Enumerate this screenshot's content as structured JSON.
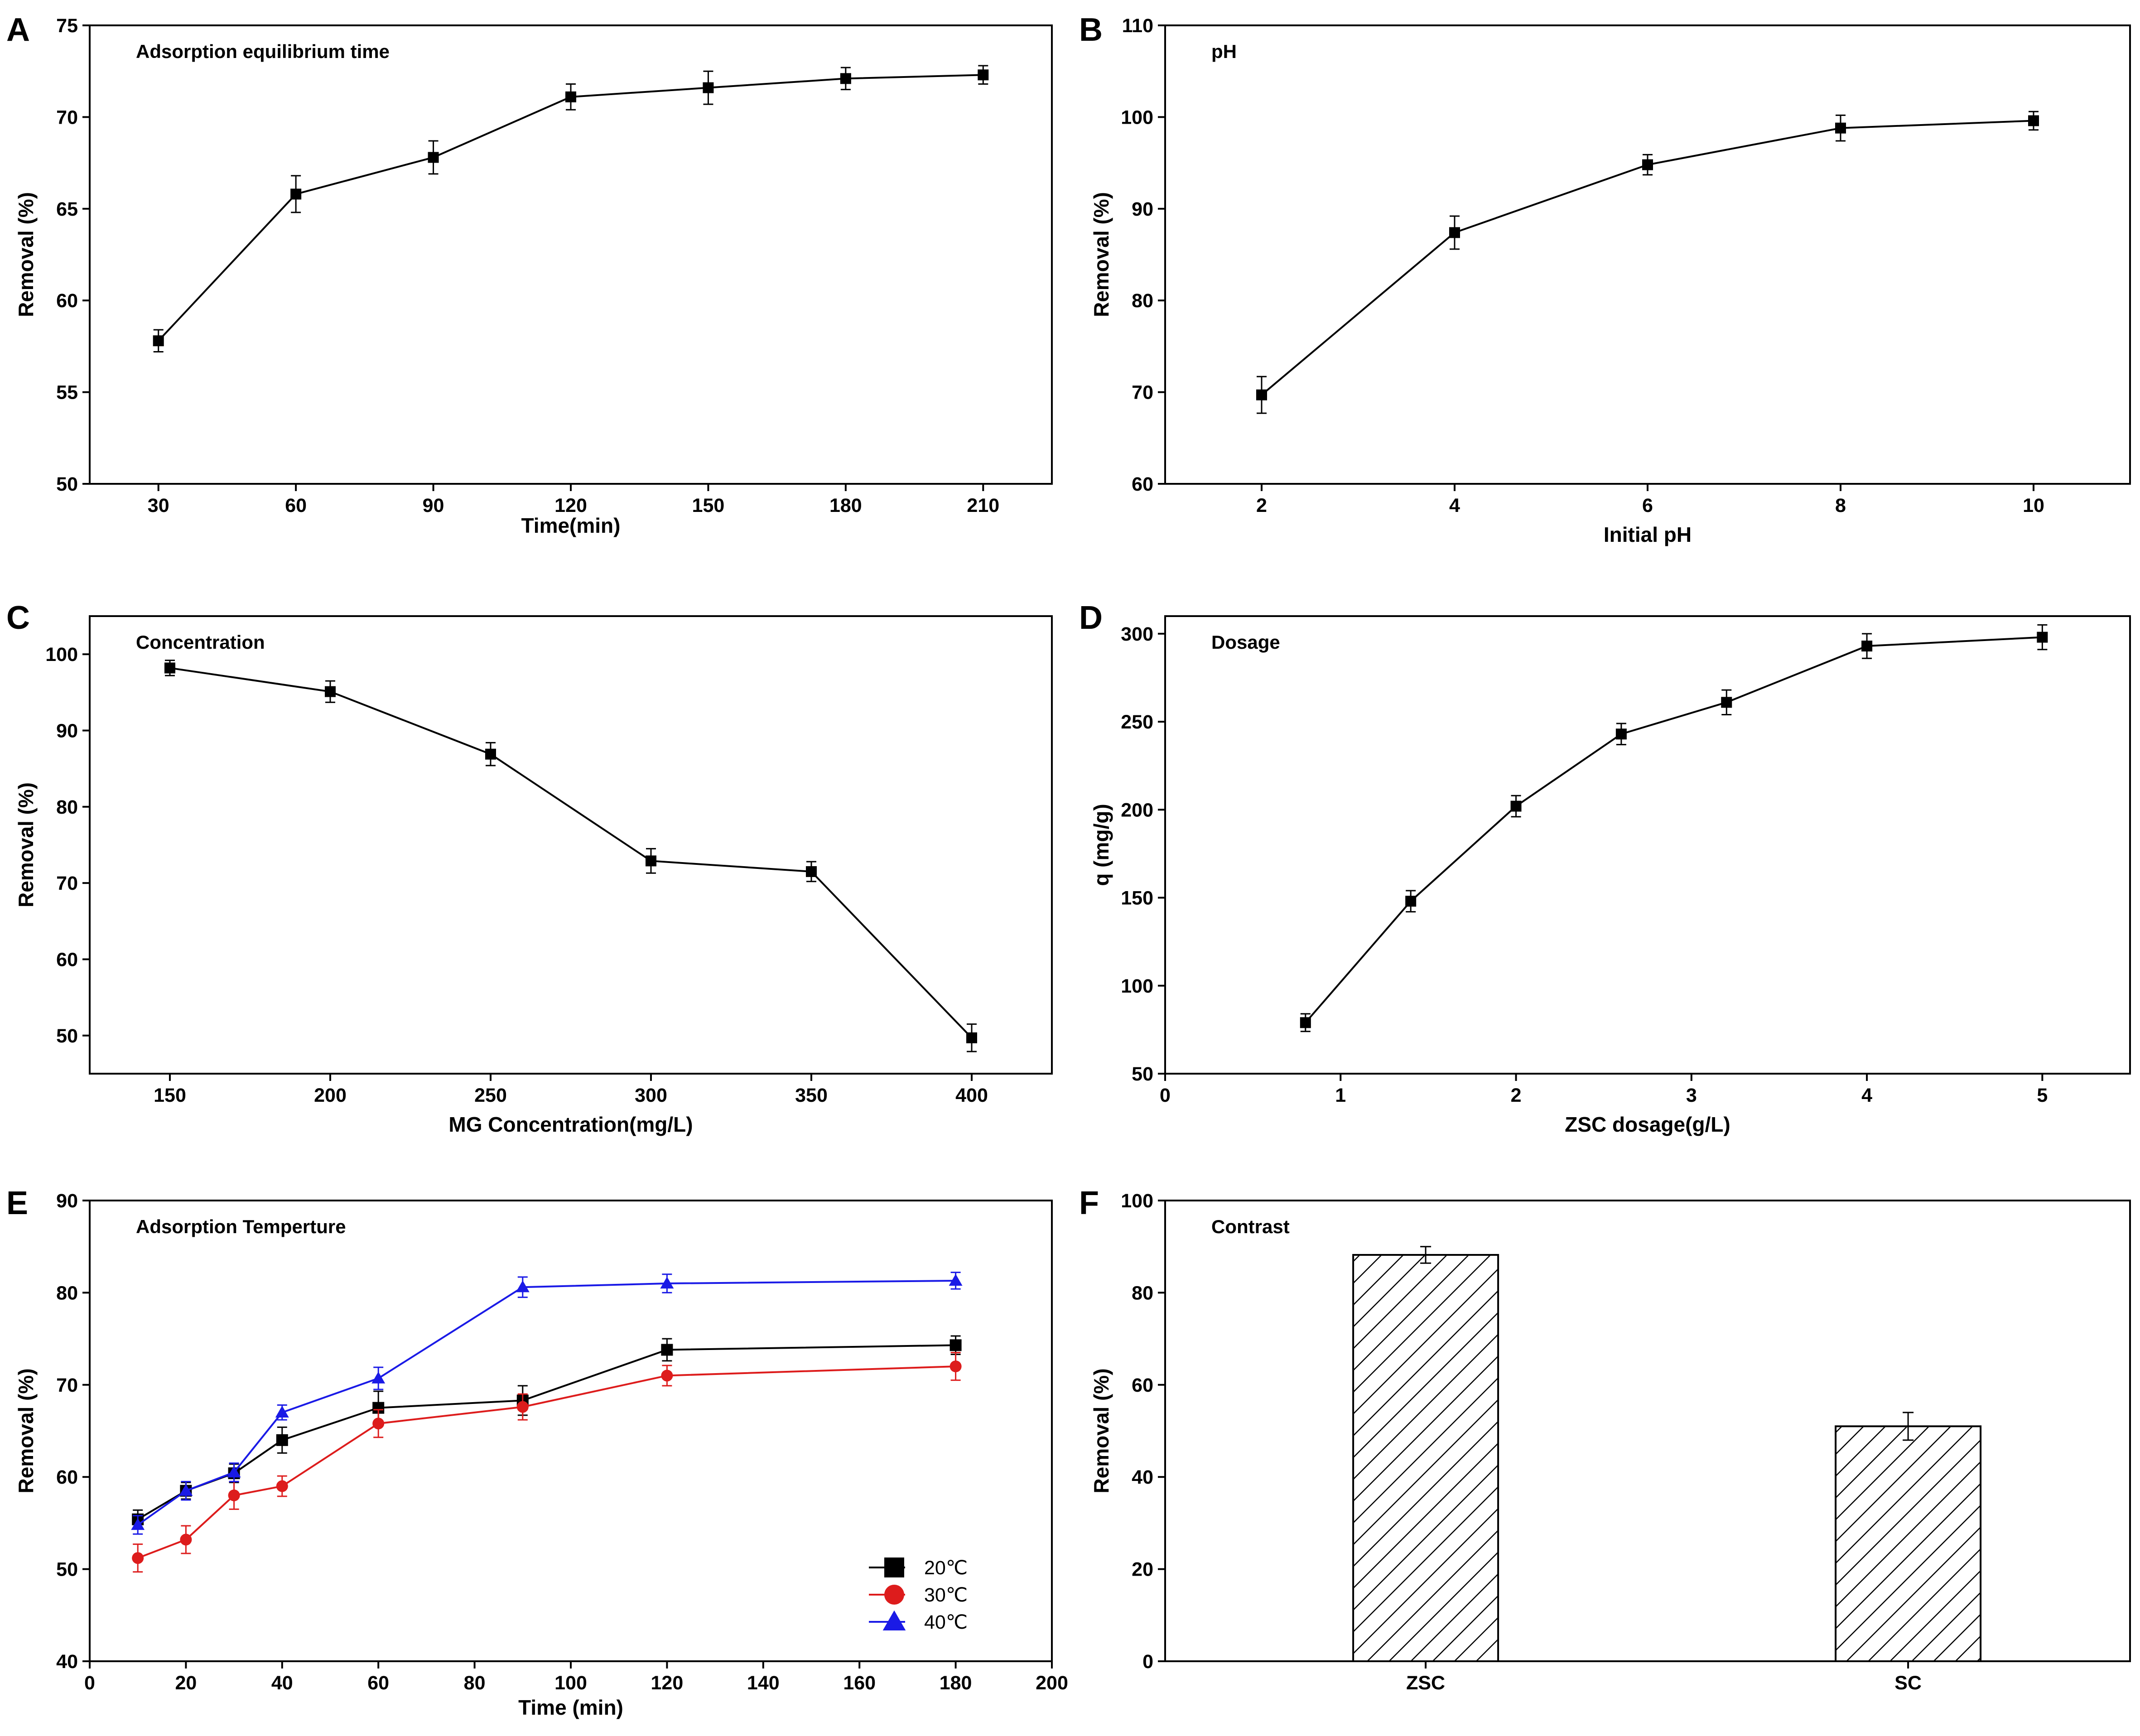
{
  "chart_data": [
    {
      "panel": "A",
      "type": "line",
      "title": "Adsorption equilibrium time",
      "xlabel": "Time(min)",
      "ylabel": "Removal (%)",
      "xlim": [
        15,
        225
      ],
      "ylim": [
        50,
        75
      ],
      "xticks": [
        30,
        60,
        90,
        120,
        150,
        180,
        210
      ],
      "yticks": [
        50,
        55,
        60,
        65,
        70,
        75
      ],
      "grid": false,
      "series": [
        {
          "color": "#000000",
          "marker": "square",
          "x": [
            30,
            60,
            90,
            120,
            150,
            180,
            210
          ],
          "y": [
            57.8,
            65.8,
            67.8,
            71.1,
            71.6,
            72.1,
            72.3
          ],
          "err": [
            0.6,
            1.0,
            0.9,
            0.7,
            0.9,
            0.6,
            0.5
          ]
        }
      ]
    },
    {
      "panel": "B",
      "type": "line",
      "title": "pH",
      "xlabel": "Initial pH",
      "ylabel": "Removal (%)",
      "xlim": [
        1,
        11
      ],
      "ylim": [
        60,
        110
      ],
      "xticks": [
        2,
        4,
        6,
        8,
        10
      ],
      "yticks": [
        60,
        70,
        80,
        90,
        100,
        110
      ],
      "grid": false,
      "series": [
        {
          "color": "#000000",
          "marker": "square",
          "x": [
            2,
            4,
            6,
            8,
            10
          ],
          "y": [
            69.7,
            87.4,
            94.8,
            98.8,
            99.6
          ],
          "err": [
            2.0,
            1.8,
            1.1,
            1.4,
            1.0
          ]
        }
      ]
    },
    {
      "panel": "C",
      "type": "line",
      "title": "Concentration",
      "xlabel": "MG Concentration(mg/L)",
      "ylabel": "Removal (%)",
      "xlim": [
        125,
        425
      ],
      "ylim": [
        45,
        105
      ],
      "xticks": [
        150,
        200,
        250,
        300,
        350,
        400
      ],
      "yticks": [
        50,
        60,
        70,
        80,
        90,
        100
      ],
      "grid": false,
      "series": [
        {
          "color": "#000000",
          "marker": "square",
          "x": [
            150,
            200,
            250,
            300,
            350,
            400
          ],
          "y": [
            98.2,
            95.1,
            86.9,
            72.9,
            71.5,
            49.7
          ],
          "err": [
            1.0,
            1.4,
            1.5,
            1.6,
            1.3,
            1.8
          ]
        }
      ]
    },
    {
      "panel": "D",
      "type": "line",
      "title": "Dosage",
      "xlabel": "ZSC dosage(g/L)",
      "ylabel": "q (mg/g)",
      "xlim": [
        0,
        5.5
      ],
      "ylim": [
        50,
        310
      ],
      "xticks": [
        0,
        1,
        2,
        3,
        4,
        5
      ],
      "yticks": [
        50,
        100,
        150,
        200,
        250,
        300
      ],
      "grid": false,
      "series": [
        {
          "color": "#000000",
          "marker": "square",
          "x": [
            0.8,
            1.4,
            2.0,
            2.6,
            3.2,
            4.0,
            5.0
          ],
          "y": [
            79,
            148,
            202,
            243,
            261,
            293,
            298
          ],
          "err": [
            5,
            6,
            6,
            6,
            7,
            7,
            7
          ]
        }
      ]
    },
    {
      "panel": "E",
      "type": "line",
      "title": "Adsorption Temperture",
      "xlabel": "Time (min)",
      "ylabel": "Removal (%)",
      "xlim": [
        0,
        200
      ],
      "ylim": [
        40,
        90
      ],
      "xticks": [
        0,
        20,
        40,
        60,
        80,
        100,
        120,
        140,
        160,
        180,
        200
      ],
      "yticks": [
        40,
        50,
        60,
        70,
        80,
        90
      ],
      "grid": false,
      "legend": "bottom-right",
      "series": [
        {
          "name": "20℃",
          "color": "#000000",
          "marker": "square",
          "x": [
            10,
            20,
            30,
            40,
            60,
            90,
            120,
            180
          ],
          "y": [
            55.4,
            58.5,
            60.4,
            64.0,
            67.5,
            68.3,
            73.8,
            74.3
          ],
          "err": [
            1.0,
            0.9,
            1.0,
            1.4,
            1.8,
            1.6,
            1.2,
            1.0
          ]
        },
        {
          "name": "30℃",
          "color": "#dd1c1c",
          "marker": "circle",
          "x": [
            10,
            20,
            30,
            40,
            60,
            90,
            120,
            180
          ],
          "y": [
            51.2,
            53.2,
            58.0,
            59.0,
            65.8,
            67.6,
            71.0,
            72.0
          ],
          "err": [
            1.5,
            1.5,
            1.5,
            1.1,
            1.5,
            1.4,
            1.1,
            1.5
          ]
        },
        {
          "name": "40℃",
          "color": "#1a1ae6",
          "marker": "triangle",
          "x": [
            10,
            20,
            30,
            40,
            60,
            90,
            120,
            180
          ],
          "y": [
            54.8,
            58.5,
            60.5,
            67.0,
            70.7,
            80.6,
            81.0,
            81.3
          ],
          "err": [
            1.0,
            1.0,
            1.0,
            0.8,
            1.2,
            1.1,
            1.0,
            0.9
          ]
        }
      ]
    },
    {
      "panel": "F",
      "type": "bar",
      "title": "Contrast",
      "xlabel": "",
      "ylabel": "Removal (%)",
      "ylim": [
        0,
        100
      ],
      "yticks": [
        0,
        20,
        40,
        60,
        80,
        100
      ],
      "categories": [
        "ZSC",
        "SC"
      ],
      "values": [
        88.2,
        51.0
      ],
      "err": [
        1.8,
        3.0
      ],
      "fill": "diagonal-hatch",
      "grid": false
    }
  ]
}
